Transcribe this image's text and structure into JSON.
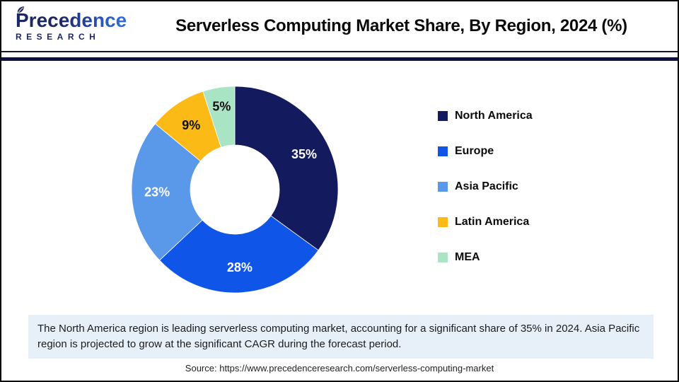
{
  "header": {
    "logo_line1": "Precedence",
    "logo_line2": "RESEARCH",
    "title": "Serverless Computing Market Share, By Region, 2024 (%)"
  },
  "chart_data": {
    "type": "pie",
    "subtype": "donut",
    "title": "Serverless Computing Market Share, By Region, 2024 (%)",
    "categories": [
      "North America",
      "Europe",
      "Asia Pacific",
      "Latin America",
      "MEA"
    ],
    "values": [
      35,
      28,
      23,
      9,
      5
    ],
    "slice_labels": [
      "35%",
      "28%",
      "23%",
      "9%",
      "5%"
    ],
    "colors": [
      "#141a5e",
      "#0f55e8",
      "#5a99ea",
      "#fbba16",
      "#a9e4c4"
    ],
    "label_colors": [
      "#ffffff",
      "#ffffff",
      "#ffffff",
      "#111111",
      "#111111"
    ],
    "label_radius": [
      110,
      110,
      110,
      110,
      119
    ],
    "start_angle_deg": 0,
    "direction": "clockwise",
    "outer_radius": 146,
    "inner_radius": 63,
    "legend_position": "right"
  },
  "note": {
    "text": "The North America region is leading serverless computing market, accounting for a significant share of 35% in 2024. Asia Pacific region is projected to grow at the significant CAGR during the forecast period."
  },
  "source": {
    "text": "Source: https://www.precedenceresearch.com/serverless-computing-market"
  },
  "style_colors": {
    "divider_navy": "#0d1140",
    "note_background": "#e7eff9",
    "logo_navy": "#1b2668",
    "logo_blue": "#2e6bdc"
  }
}
